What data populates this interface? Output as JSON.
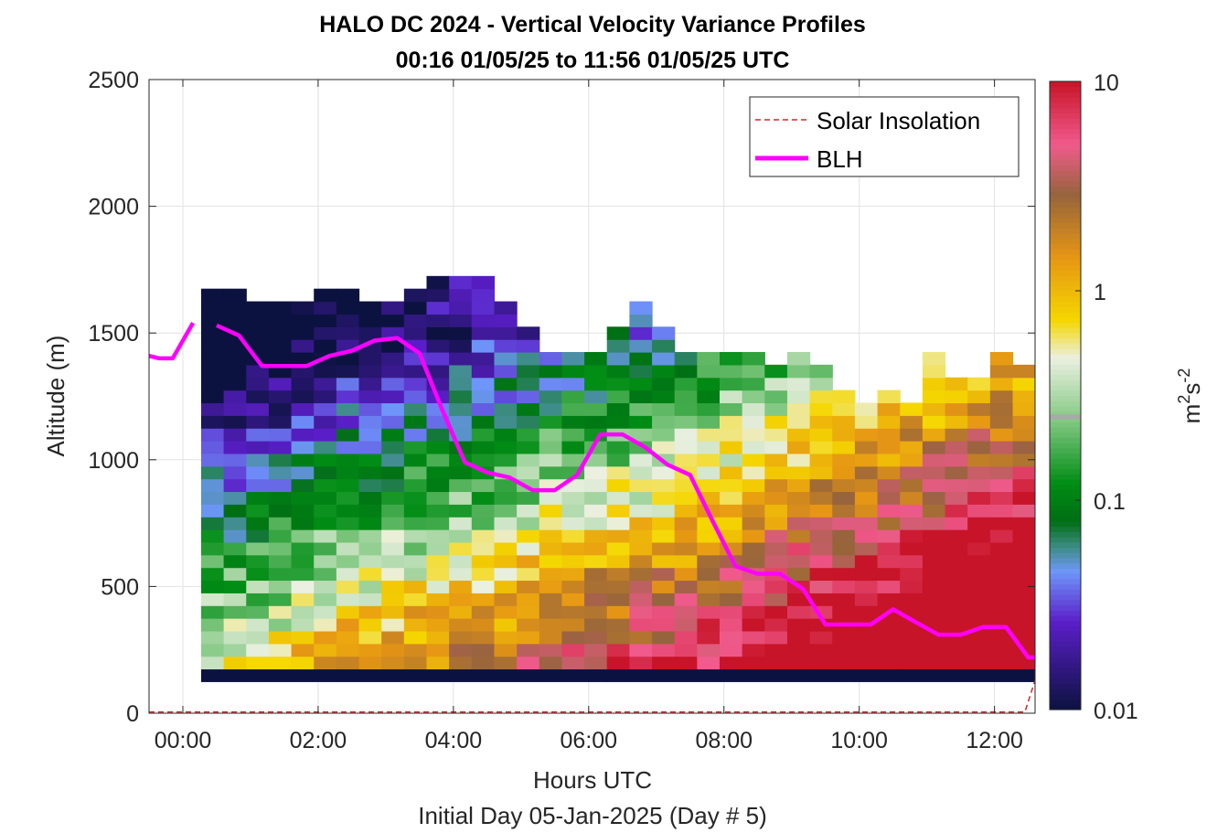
{
  "chart_data": {
    "type": "heatmap",
    "title": "HALO DC 2024 - Vertical Velocity Variance Profiles",
    "subtitle": "00:16 01/05/25 to 11:56 01/05/25  UTC",
    "xlabel": "Hours UTC",
    "xlabel2": "Initial Day 05-Jan-2025 (Day # 5)",
    "ylabel": "Altitude (m)",
    "xlim": [
      -0.5,
      12.6
    ],
    "ylim": [
      0,
      2500
    ],
    "x_ticks": [
      0,
      2,
      4,
      6,
      8,
      10,
      12
    ],
    "x_tick_labels": [
      "00:00",
      "02:00",
      "04:00",
      "06:00",
      "08:00",
      "10:00",
      "12:00"
    ],
    "y_ticks": [
      0,
      500,
      1000,
      1500,
      2000,
      2500
    ],
    "y_tick_labels": [
      "0",
      "500",
      "1000",
      "1500",
      "2000",
      "2500"
    ],
    "grid": true,
    "colorbar": {
      "scale": "log",
      "range": [
        0.01,
        10
      ],
      "ticks": [
        0.01,
        0.1,
        1,
        10
      ],
      "tick_labels": [
        "0.01",
        "0.1",
        "1",
        "10"
      ],
      "label_base": "m",
      "label_sup1": "2",
      "label_mid": "s",
      "label_sup2": "-2",
      "marker_value": 0.25
    },
    "legend": {
      "placement": "top-right",
      "entries": [
        {
          "label": "Solar Insolation",
          "style": "dashed",
          "color": "#d62728"
        },
        {
          "label": "BLH",
          "style": "solid",
          "color": "#ff00ff"
        }
      ]
    },
    "heatmap": {
      "x_start": 0.27,
      "x_step": 0.3333,
      "y_start": 125,
      "y_step": 50,
      "bottom_row_value": 0.01,
      "tops": [
        1630,
        1650,
        1600,
        1580,
        1600,
        1640,
        1650,
        1610,
        1580,
        1660,
        1690,
        1720,
        1690,
        1580,
        1480,
        1400,
        1380,
        1380,
        1480,
        1600,
        1480,
        1380,
        1380,
        1380,
        1380,
        1330,
        1380,
        1330,
        1270,
        1180,
        1230,
        1180,
        1380,
        1280,
        1280,
        1380,
        1330,
        1330,
        1280,
        1380,
        1330,
        1430,
        1380
      ],
      "bases": [
        0.03,
        0.06,
        0.1,
        0.16,
        0.28,
        0.36,
        0.42,
        0.46,
        0.5,
        0.55,
        0.58,
        0.62,
        0.66,
        0.72,
        0.78,
        0.85,
        0.92,
        0.97,
        1.02,
        1.06,
        1.1,
        1.16,
        1.23,
        1.3,
        1.38,
        1.46,
        1.54,
        1.6,
        1.66,
        1.72,
        1.78,
        1.84,
        1.92,
        2.0,
        2.06,
        2.12,
        2.18,
        2.24,
        2.3,
        2.36,
        2.4,
        2.44,
        2.48
      ]
    },
    "solar_insolation": {
      "x": [
        -0.5,
        12.45,
        12.6
      ],
      "y": [
        5,
        5,
        130
      ]
    },
    "series": [
      {
        "name": "BLH",
        "color": "#ff00ff",
        "x": [
          -0.5,
          -0.35,
          -0.15,
          0.15
        ],
        "y": [
          1410,
          1400,
          1400,
          1540
        ]
      },
      {
        "name": "BLH",
        "color": "#ff00ff",
        "x": [
          0.5,
          0.83,
          1.17,
          1.5,
          1.83,
          2.17,
          2.5,
          2.83,
          3.17,
          3.5,
          3.83,
          4.17,
          4.5,
          4.83,
          5.17,
          5.5,
          5.83,
          6.17,
          6.5,
          6.83,
          7.17,
          7.5,
          7.83,
          8.17,
          8.5,
          8.83,
          9.17,
          9.5,
          9.83,
          10.17,
          10.5,
          10.83,
          11.17,
          11.5,
          11.83,
          12.17,
          12.5,
          12.6
        ],
        "y": [
          1530,
          1490,
          1370,
          1370,
          1370,
          1410,
          1430,
          1470,
          1480,
          1420,
          1200,
          990,
          950,
          930,
          880,
          880,
          940,
          1100,
          1100,
          1050,
          980,
          940,
          760,
          580,
          550,
          550,
          490,
          350,
          350,
          350,
          410,
          360,
          310,
          310,
          340,
          340,
          220,
          220
        ]
      }
    ]
  }
}
